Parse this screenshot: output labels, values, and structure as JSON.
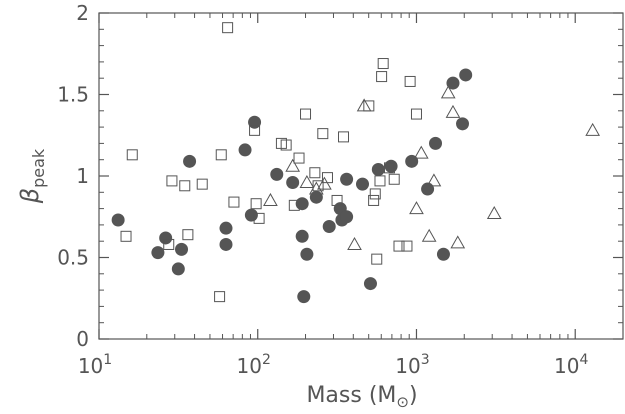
{
  "chart_data": {
    "type": "scatter",
    "title": "",
    "xlabel": "Mass (M",
    "xlabel_symbol": "⊙",
    "xlabel_close": ")",
    "ylabel": "β",
    "ylabel_sub": "peak",
    "xscale": "log",
    "xlim": [
      10,
      20000
    ],
    "ylim": [
      0,
      2
    ],
    "xticks": [
      {
        "value": 10,
        "base": "10",
        "exp": "1"
      },
      {
        "value": 100,
        "base": "10",
        "exp": "2"
      },
      {
        "value": 1000,
        "base": "10",
        "exp": "3"
      },
      {
        "value": 10000,
        "base": "10",
        "exp": "4"
      }
    ],
    "yticks": [
      {
        "value": 0,
        "label": "0"
      },
      {
        "value": 0.5,
        "label": "0.5"
      },
      {
        "value": 1,
        "label": "1"
      },
      {
        "value": 1.5,
        "label": "1.5"
      },
      {
        "value": 2,
        "label": "2"
      }
    ],
    "grid": false,
    "legend": "none",
    "colors": {
      "axis": "#555555",
      "filled": "#555555",
      "open": "#555555"
    },
    "series": [
      {
        "marker": "filled-circle",
        "points": [
          [
            13.2,
            0.73
          ],
          [
            23.5,
            0.53
          ],
          [
            26.3,
            0.62
          ],
          [
            31.6,
            0.43
          ],
          [
            33.1,
            0.55
          ],
          [
            37.2,
            1.09
          ],
          [
            63.1,
            0.58
          ],
          [
            63.1,
            0.68
          ],
          [
            83.2,
            1.16
          ],
          [
            91.2,
            0.76
          ],
          [
            95.5,
            1.33
          ],
          [
            131.8,
            1.01
          ],
          [
            166,
            0.96
          ],
          [
            190.5,
            0.63
          ],
          [
            190.5,
            0.83
          ],
          [
            195,
            0.26
          ],
          [
            204,
            0.52
          ],
          [
            234,
            0.87
          ],
          [
            282,
            0.69
          ],
          [
            331,
            0.8
          ],
          [
            339,
            0.73
          ],
          [
            363,
            0.75
          ],
          [
            363,
            0.98
          ],
          [
            457,
            0.95
          ],
          [
            513,
            0.34
          ],
          [
            575,
            1.04
          ],
          [
            692,
            1.06
          ],
          [
            933,
            1.09
          ],
          [
            1175,
            0.92
          ],
          [
            1318,
            1.2
          ],
          [
            1479,
            0.52
          ],
          [
            1698,
            1.57
          ],
          [
            1950,
            1.32
          ],
          [
            2042,
            1.62
          ]
        ]
      },
      {
        "marker": "open-square",
        "points": [
          [
            14.8,
            0.63
          ],
          [
            16.2,
            1.13
          ],
          [
            27.5,
            0.58
          ],
          [
            28.8,
            0.97
          ],
          [
            34.7,
            0.94
          ],
          [
            36.3,
            0.64
          ],
          [
            44.7,
            0.95
          ],
          [
            57.5,
            0.26
          ],
          [
            58.9,
            1.13
          ],
          [
            64.6,
            1.91
          ],
          [
            70.8,
            0.84
          ],
          [
            95.5,
            1.28
          ],
          [
            97.7,
            0.83
          ],
          [
            102,
            0.74
          ],
          [
            141,
            1.2
          ],
          [
            151,
            1.19
          ],
          [
            170,
            0.82
          ],
          [
            182,
            1.11
          ],
          [
            200,
            1.38
          ],
          [
            229,
            1.02
          ],
          [
            240,
            0.94
          ],
          [
            257,
            1.26
          ],
          [
            275,
            0.99
          ],
          [
            316,
            0.85
          ],
          [
            347,
            1.24
          ],
          [
            501,
            1.43
          ],
          [
            537,
            0.85
          ],
          [
            550,
            0.89
          ],
          [
            562,
            0.49
          ],
          [
            589,
            0.97
          ],
          [
            603,
            1.61
          ],
          [
            617,
            1.69
          ],
          [
            676,
            1.05
          ],
          [
            724,
            0.98
          ],
          [
            776,
            0.57
          ],
          [
            871,
            0.57
          ],
          [
            912,
            1.58
          ],
          [
            1000,
            1.38
          ]
        ]
      },
      {
        "marker": "open-triangle",
        "points": [
          [
            120.2,
            0.85
          ],
          [
            166,
            1.06
          ],
          [
            204,
            0.96
          ],
          [
            234,
            0.92
          ],
          [
            263,
            0.95
          ],
          [
            407,
            0.58
          ],
          [
            468,
            1.43
          ],
          [
            1000,
            0.8
          ],
          [
            1072,
            1.14
          ],
          [
            1202,
            0.63
          ],
          [
            1288,
            0.97
          ],
          [
            1585,
            1.51
          ],
          [
            1698,
            1.39
          ],
          [
            1820,
            0.59
          ],
          [
            3090,
            0.77
          ],
          [
            12880,
            1.28
          ]
        ]
      }
    ]
  }
}
